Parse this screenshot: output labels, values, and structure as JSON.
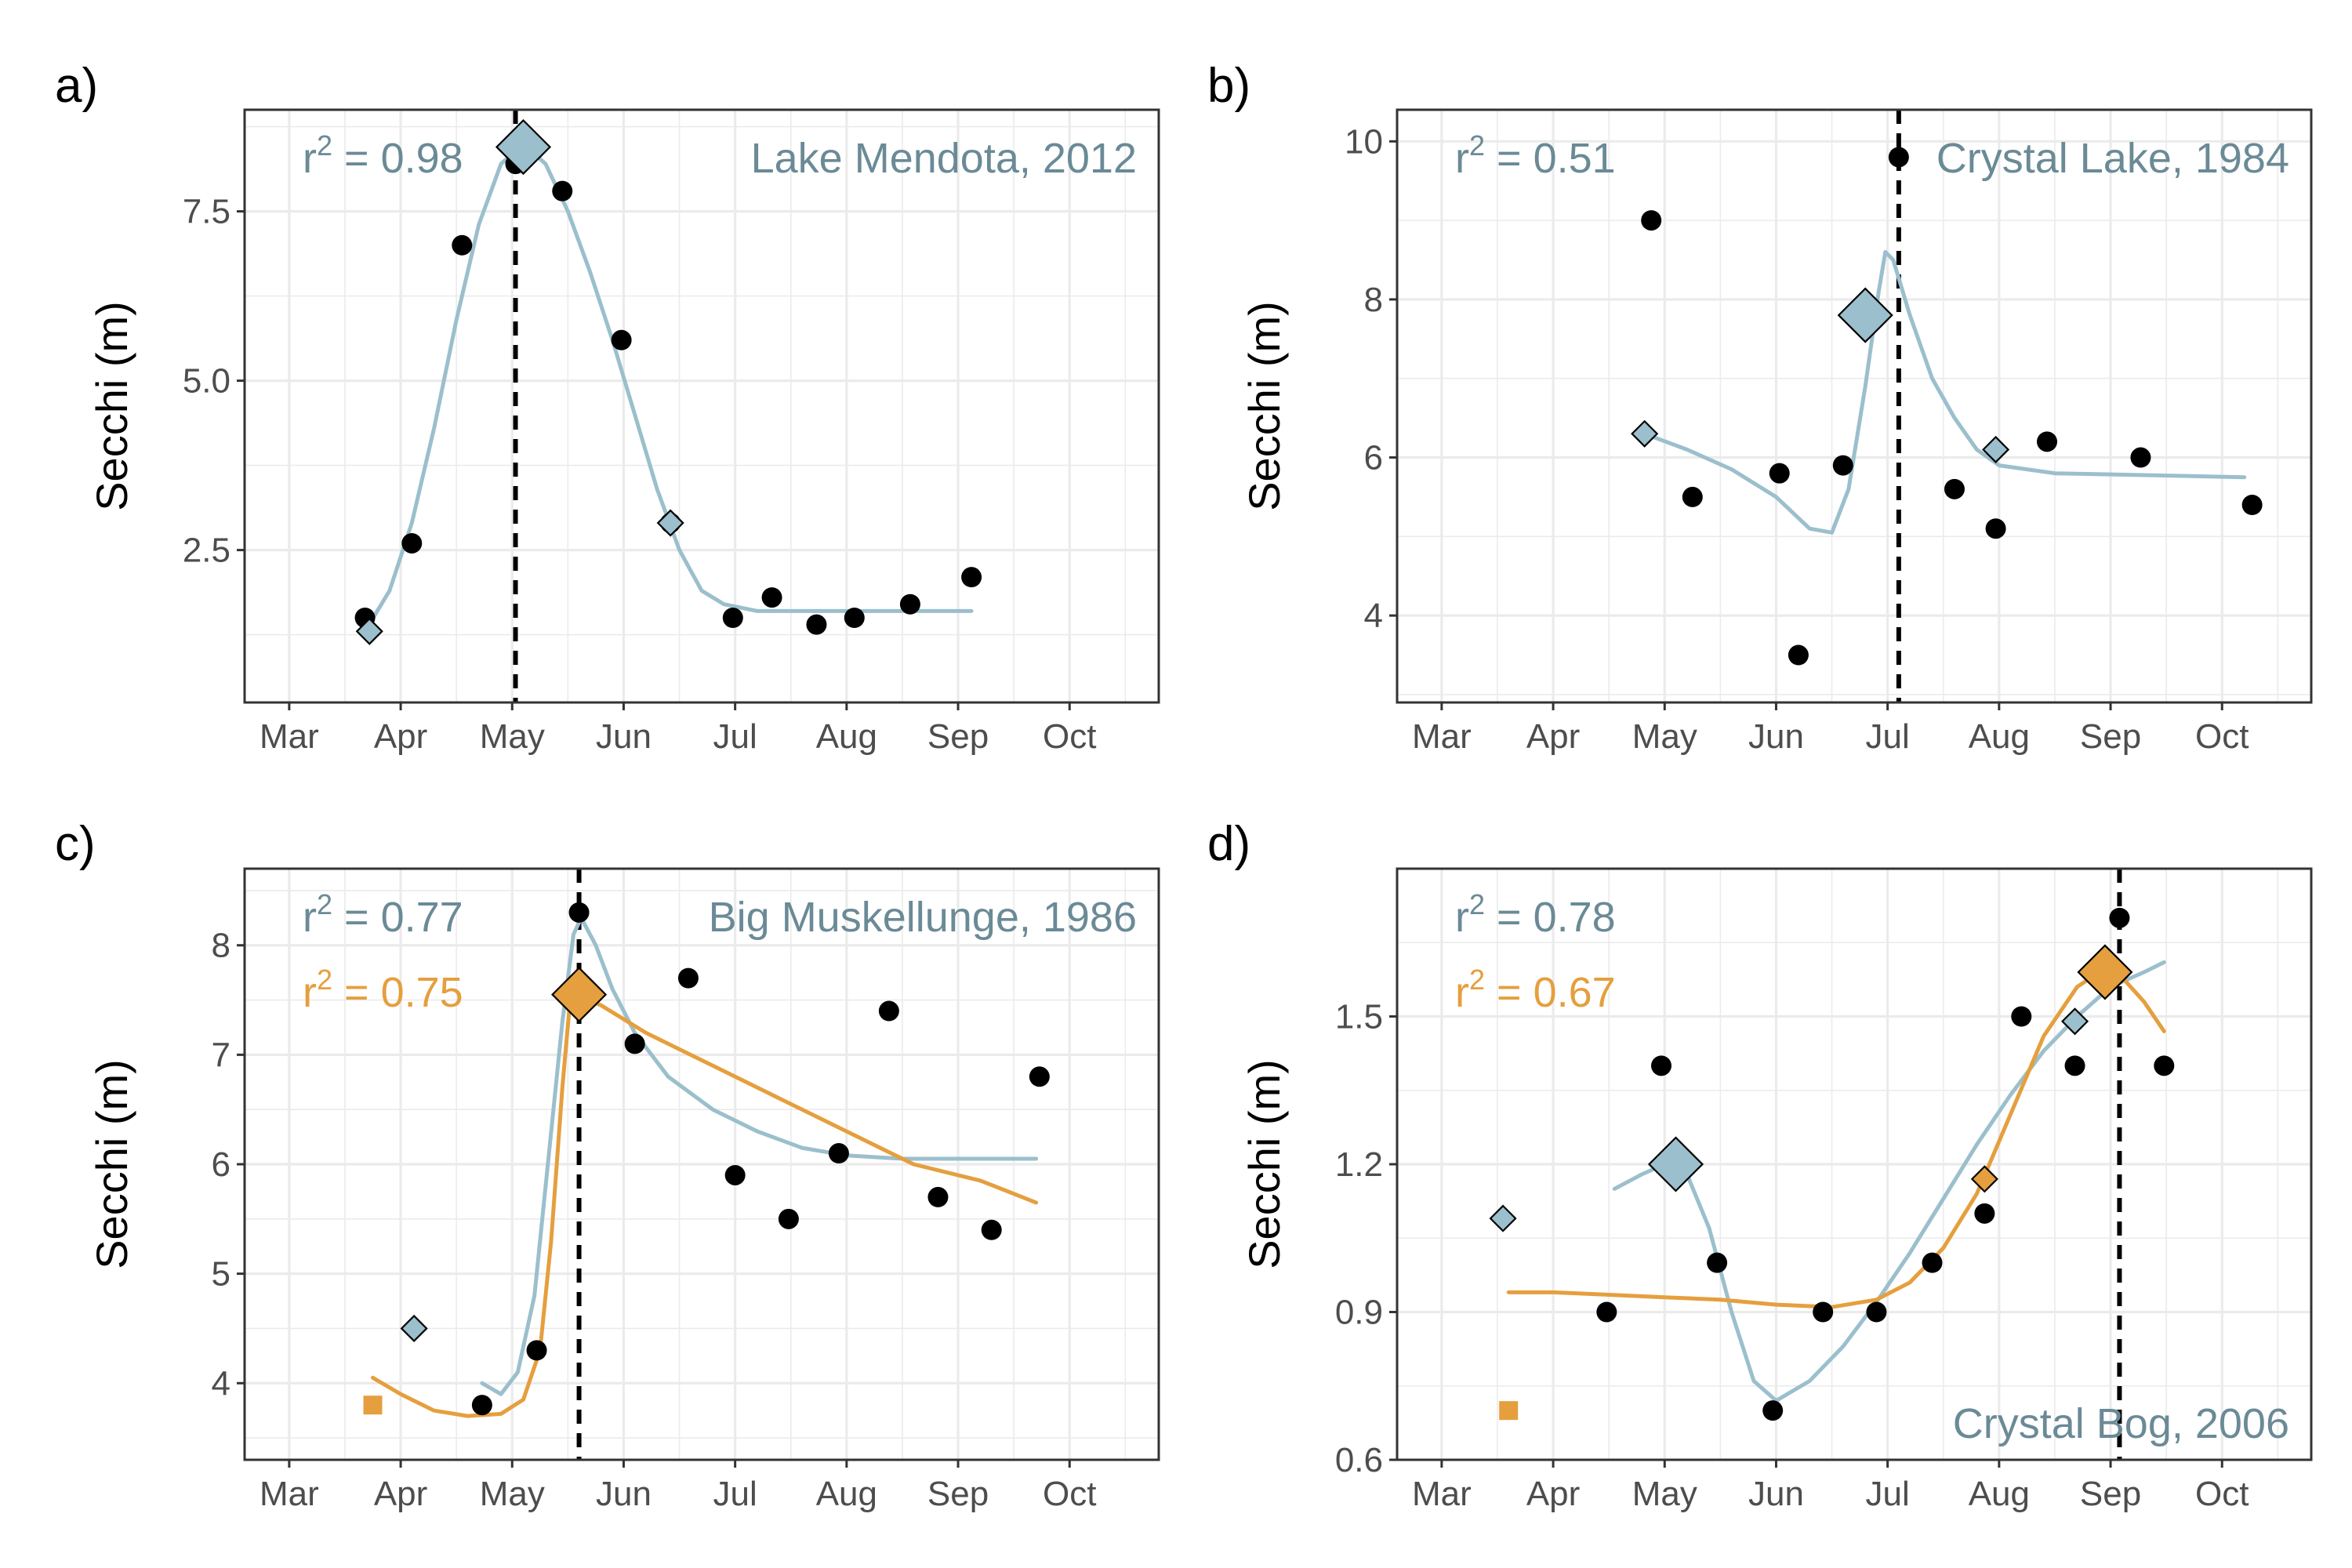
{
  "figure": {
    "colors": {
      "blue": "#9bbfcc",
      "orange": "#e59f3e",
      "point": "#000000",
      "annotation_text": "#6a8a96"
    }
  },
  "chart_data": [
    {
      "panel": "a)",
      "type": "scatter",
      "title": "",
      "xlabel": "",
      "ylabel": "Secchi (m)",
      "x_ticks": [
        "Mar",
        "Apr",
        "May",
        "Jun",
        "Jul",
        "Aug",
        "Sep",
        "Oct"
      ],
      "x_tick_months": [
        3,
        4,
        5,
        6,
        7,
        8,
        9,
        10
      ],
      "xlim": [
        2.6,
        10.8
      ],
      "ylim": [
        0.25,
        9.0
      ],
      "y_ticks": [
        2.5,
        5.0,
        7.5
      ],
      "y_tick_labels": [
        "2.5",
        "5.0",
        "7.5"
      ],
      "grid": true,
      "lake_label": "Lake Mendota, 2012",
      "lake_label_position": "top-right",
      "r2": [
        {
          "text": "0.98",
          "color": "#6a8a96"
        }
      ],
      "points": [
        [
          3.68,
          1.5
        ],
        [
          4.1,
          2.6
        ],
        [
          4.55,
          7.0
        ],
        [
          5.03,
          8.2
        ],
        [
          5.45,
          7.8
        ],
        [
          5.98,
          5.6
        ],
        [
          6.42,
          2.9
        ],
        [
          6.98,
          1.5
        ],
        [
          7.33,
          1.8
        ],
        [
          7.73,
          1.4
        ],
        [
          8.07,
          1.5
        ],
        [
          8.57,
          1.7
        ],
        [
          9.12,
          2.1
        ]
      ],
      "vline_x": 5.03,
      "fits": [
        {
          "color": "#9bbfcc",
          "points": [
            [
              3.68,
              1.3
            ],
            [
              3.9,
              1.9
            ],
            [
              4.1,
              2.9
            ],
            [
              4.3,
              4.3
            ],
            [
              4.5,
              5.9
            ],
            [
              4.7,
              7.3
            ],
            [
              4.9,
              8.2
            ],
            [
              5.1,
              8.5
            ],
            [
              5.3,
              8.2
            ],
            [
              5.5,
              7.5
            ],
            [
              5.7,
              6.6
            ],
            [
              5.9,
              5.6
            ],
            [
              6.1,
              4.5
            ],
            [
              6.3,
              3.4
            ],
            [
              6.5,
              2.5
            ],
            [
              6.7,
              1.9
            ],
            [
              6.9,
              1.7
            ],
            [
              7.2,
              1.6
            ],
            [
              9.12,
              1.6
            ]
          ]
        }
      ],
      "markers": [
        {
          "shape": "diamond",
          "color": "#9bbfcc",
          "size": "large",
          "x": 5.1,
          "y": 8.45
        },
        {
          "shape": "diamond",
          "color": "#9bbfcc",
          "size": "small",
          "x": 3.72,
          "y": 1.3
        },
        {
          "shape": "diamond",
          "color": "#9bbfcc",
          "size": "small",
          "x": 6.42,
          "y": 2.9
        }
      ]
    },
    {
      "panel": "b)",
      "type": "scatter",
      "title": "",
      "xlabel": "",
      "ylabel": "Secchi (m)",
      "x_ticks": [
        "Mar",
        "Apr",
        "May",
        "Jun",
        "Jul",
        "Aug",
        "Sep",
        "Oct"
      ],
      "x_tick_months": [
        3,
        4,
        5,
        6,
        7,
        8,
        9,
        10
      ],
      "xlim": [
        2.6,
        10.8
      ],
      "ylim": [
        2.9,
        10.4
      ],
      "y_ticks": [
        4,
        6,
        8,
        10
      ],
      "y_tick_labels": [
        "4",
        "6",
        "8",
        "10"
      ],
      "grid": true,
      "lake_label": "Crystal Lake, 1984",
      "lake_label_position": "top-right",
      "r2": [
        {
          "text": "0.51",
          "color": "#6a8a96"
        }
      ],
      "points": [
        [
          4.88,
          9.0
        ],
        [
          5.25,
          5.5
        ],
        [
          6.03,
          5.8
        ],
        [
          6.2,
          3.5
        ],
        [
          6.6,
          5.9
        ],
        [
          7.1,
          9.8
        ],
        [
          7.6,
          5.6
        ],
        [
          7.97,
          5.1
        ],
        [
          8.43,
          6.2
        ],
        [
          9.27,
          6.0
        ],
        [
          10.27,
          5.4
        ]
      ],
      "vline_x": 7.1,
      "fits": [
        {
          "color": "#9bbfcc",
          "points": [
            [
              4.82,
              6.3
            ],
            [
              5.2,
              6.1
            ],
            [
              5.6,
              5.85
            ],
            [
              6.0,
              5.5
            ],
            [
              6.3,
              5.1
            ],
            [
              6.5,
              5.05
            ],
            [
              6.65,
              5.6
            ],
            [
              6.8,
              6.9
            ],
            [
              6.92,
              8.1
            ],
            [
              6.98,
              8.6
            ],
            [
              7.05,
              8.5
            ],
            [
              7.2,
              7.8
            ],
            [
              7.4,
              7.0
            ],
            [
              7.6,
              6.5
            ],
            [
              7.8,
              6.1
            ],
            [
              8.0,
              5.9
            ],
            [
              8.5,
              5.8
            ],
            [
              10.2,
              5.75
            ]
          ]
        }
      ],
      "markers": [
        {
          "shape": "diamond",
          "color": "#9bbfcc",
          "size": "large",
          "x": 6.8,
          "y": 7.8
        },
        {
          "shape": "diamond",
          "color": "#9bbfcc",
          "size": "small",
          "x": 4.82,
          "y": 6.3
        },
        {
          "shape": "diamond",
          "color": "#9bbfcc",
          "size": "small",
          "x": 7.97,
          "y": 6.1
        }
      ]
    },
    {
      "panel": "c)",
      "type": "scatter",
      "title": "",
      "xlabel": "",
      "ylabel": "Secchi (m)",
      "x_ticks": [
        "Mar",
        "Apr",
        "May",
        "Jun",
        "Jul",
        "Aug",
        "Sep",
        "Oct"
      ],
      "x_tick_months": [
        3,
        4,
        5,
        6,
        7,
        8,
        9,
        10
      ],
      "xlim": [
        2.6,
        10.8
      ],
      "ylim": [
        3.3,
        8.7
      ],
      "y_ticks": [
        4,
        5,
        6,
        7,
        8
      ],
      "y_tick_labels": [
        "4",
        "5",
        "6",
        "7",
        "8"
      ],
      "grid": true,
      "lake_label": "Big Muskellunge, 1986",
      "lake_label_position": "top-right",
      "r2": [
        {
          "text": "0.77",
          "color": "#6a8a96"
        },
        {
          "text": "0.75",
          "color": "#e59f3e"
        }
      ],
      "points": [
        [
          4.73,
          3.8
        ],
        [
          5.22,
          4.3
        ],
        [
          5.6,
          8.3
        ],
        [
          6.1,
          7.1
        ],
        [
          6.58,
          7.7
        ],
        [
          7.0,
          5.9
        ],
        [
          7.48,
          5.5
        ],
        [
          7.93,
          6.1
        ],
        [
          8.38,
          7.4
        ],
        [
          8.82,
          5.7
        ],
        [
          9.3,
          5.4
        ],
        [
          9.73,
          6.8
        ]
      ],
      "vline_x": 5.6,
      "fits": [
        {
          "color": "#9bbfcc",
          "points": [
            [
              4.73,
              4.0
            ],
            [
              4.9,
              3.9
            ],
            [
              5.05,
              4.1
            ],
            [
              5.2,
              4.8
            ],
            [
              5.32,
              6.0
            ],
            [
              5.45,
              7.3
            ],
            [
              5.55,
              8.1
            ],
            [
              5.62,
              8.25
            ],
            [
              5.75,
              8.0
            ],
            [
              5.9,
              7.6
            ],
            [
              6.1,
              7.2
            ],
            [
              6.4,
              6.8
            ],
            [
              6.8,
              6.5
            ],
            [
              7.2,
              6.3
            ],
            [
              7.6,
              6.15
            ],
            [
              8.0,
              6.08
            ],
            [
              8.5,
              6.05
            ],
            [
              9.7,
              6.05
            ]
          ]
        },
        {
          "color": "#e59f3e",
          "points": [
            [
              3.75,
              4.05
            ],
            [
              4.0,
              3.9
            ],
            [
              4.3,
              3.75
            ],
            [
              4.6,
              3.7
            ],
            [
              4.9,
              3.72
            ],
            [
              5.1,
              3.85
            ],
            [
              5.25,
              4.3
            ],
            [
              5.35,
              5.3
            ],
            [
              5.45,
              6.7
            ],
            [
              5.52,
              7.5
            ],
            [
              5.58,
              7.55
            ],
            [
              5.8,
              7.45
            ],
            [
              6.2,
              7.2
            ],
            [
              6.8,
              6.9
            ],
            [
              7.4,
              6.6
            ],
            [
              8.0,
              6.3
            ],
            [
              8.6,
              6.0
            ],
            [
              9.2,
              5.85
            ],
            [
              9.7,
              5.65
            ]
          ]
        }
      ],
      "markers": [
        {
          "shape": "diamond",
          "color": "#e59f3e",
          "size": "large",
          "x": 5.6,
          "y": 7.55
        },
        {
          "shape": "diamond",
          "color": "#9bbfcc",
          "size": "small",
          "x": 4.12,
          "y": 4.5
        },
        {
          "shape": "square",
          "color": "#e59f3e",
          "size": "small",
          "x": 3.75,
          "y": 3.8
        }
      ]
    },
    {
      "panel": "d)",
      "type": "scatter",
      "title": "",
      "xlabel": "",
      "ylabel": "Secchi (m)",
      "x_ticks": [
        "Mar",
        "Apr",
        "May",
        "Jun",
        "Jul",
        "Aug",
        "Sep",
        "Oct"
      ],
      "x_tick_months": [
        3,
        4,
        5,
        6,
        7,
        8,
        9,
        10
      ],
      "xlim": [
        2.6,
        10.8
      ],
      "ylim": [
        0.6,
        1.8
      ],
      "y_ticks": [
        0.6,
        0.9,
        1.2,
        1.5
      ],
      "y_tick_labels": [
        "0.6",
        "0.9",
        "1.2",
        "1.5"
      ],
      "grid": true,
      "lake_label": "Crystal Bog, 2006",
      "lake_label_position": "bottom-right",
      "r2": [
        {
          "text": "0.78",
          "color": "#6a8a96"
        },
        {
          "text": "0.67",
          "color": "#e59f3e"
        }
      ],
      "points": [
        [
          4.48,
          0.9
        ],
        [
          4.97,
          1.4
        ],
        [
          5.47,
          1.0
        ],
        [
          5.97,
          0.7
        ],
        [
          6.42,
          0.9
        ],
        [
          6.9,
          0.9
        ],
        [
          7.4,
          1.0
        ],
        [
          7.87,
          1.1
        ],
        [
          8.2,
          1.5
        ],
        [
          8.68,
          1.4
        ],
        [
          9.08,
          1.7
        ],
        [
          9.48,
          1.4
        ]
      ],
      "vline_x": 9.08,
      "fits": [
        {
          "color": "#9bbfcc",
          "points": [
            [
              4.55,
              1.15
            ],
            [
              4.8,
              1.18
            ],
            [
              5.0,
              1.2
            ],
            [
              5.2,
              1.18
            ],
            [
              5.4,
              1.07
            ],
            [
              5.6,
              0.9
            ],
            [
              5.8,
              0.76
            ],
            [
              6.0,
              0.72
            ],
            [
              6.3,
              0.76
            ],
            [
              6.6,
              0.83
            ],
            [
              6.9,
              0.92
            ],
            [
              7.2,
              1.02
            ],
            [
              7.5,
              1.13
            ],
            [
              7.8,
              1.24
            ],
            [
              8.1,
              1.34
            ],
            [
              8.4,
              1.43
            ],
            [
              8.7,
              1.5
            ],
            [
              9.0,
              1.56
            ],
            [
              9.3,
              1.59
            ],
            [
              9.48,
              1.61
            ]
          ]
        },
        {
          "color": "#e59f3e",
          "points": [
            [
              3.6,
              0.94
            ],
            [
              4.0,
              0.94
            ],
            [
              4.5,
              0.935
            ],
            [
              5.0,
              0.93
            ],
            [
              5.5,
              0.925
            ],
            [
              6.0,
              0.915
            ],
            [
              6.5,
              0.91
            ],
            [
              6.9,
              0.925
            ],
            [
              7.2,
              0.96
            ],
            [
              7.5,
              1.03
            ],
            [
              7.8,
              1.14
            ],
            [
              8.1,
              1.3
            ],
            [
              8.4,
              1.46
            ],
            [
              8.7,
              1.56
            ],
            [
              8.9,
              1.59
            ],
            [
              9.1,
              1.58
            ],
            [
              9.3,
              1.53
            ],
            [
              9.48,
              1.47
            ]
          ]
        }
      ],
      "markers": [
        {
          "shape": "diamond",
          "color": "#9bbfcc",
          "size": "large",
          "x": 5.1,
          "y": 1.2
        },
        {
          "shape": "diamond",
          "color": "#e59f3e",
          "size": "large",
          "x": 8.95,
          "y": 1.59
        },
        {
          "shape": "diamond",
          "color": "#9bbfcc",
          "size": "small",
          "x": 3.55,
          "y": 1.09
        },
        {
          "shape": "diamond",
          "color": "#e59f3e",
          "size": "small",
          "x": 7.87,
          "y": 1.17
        },
        {
          "shape": "diamond",
          "color": "#9bbfcc",
          "size": "small",
          "x": 8.68,
          "y": 1.49
        },
        {
          "shape": "square",
          "color": "#e59f3e",
          "size": "small",
          "x": 3.6,
          "y": 0.7
        }
      ]
    }
  ]
}
